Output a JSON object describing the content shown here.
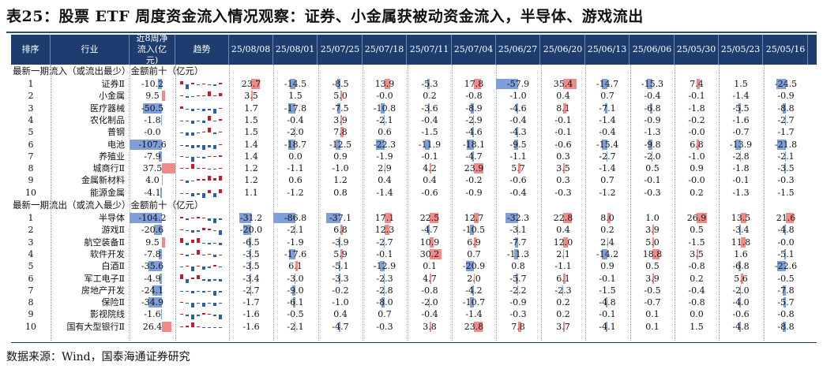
{
  "title": "表25：股票 ETF 周度资金流入情况观察：证券、小金属获被动资金流入，半导体、游戏流出",
  "headers": {
    "idx": "排序",
    "industry": "行业",
    "net8w": "近8周净流入(亿元)",
    "trend": "趋势",
    "weeks": [
      "25/08/08",
      "25/08/01",
      "25/07/25",
      "25/07/18",
      "25/07/11",
      "25/07/04",
      "25/06/27",
      "25/06/20",
      "25/06/13",
      "25/06/06",
      "25/05/30",
      "25/05/23",
      "25/05/16"
    ]
  },
  "section_inflow": "最新一期流入（或流出最少）金额前十（亿元）",
  "section_outflow": "最新一期流出（或流入最少）金额前十（亿元）",
  "colors": {
    "header_bg": "#1f3c6e",
    "neg_bar": "#7f9fd8",
    "pos_bar": "#f08b87",
    "spark_up": "#d0152a",
    "spark_down": "#2d5fa8"
  },
  "inflow_rows": [
    {
      "idx": "1",
      "industry": "证券Ⅱ",
      "net8w": "-10.2",
      "values": [
        "23.7",
        "-14.5",
        "-8.5",
        "13.9",
        "-5.3",
        "17.8",
        "-57.9",
        "35.4",
        "-14.7",
        "-15.3",
        "7.4",
        "1.5",
        "-24.5"
      ]
    },
    {
      "idx": "2",
      "industry": "小金属",
      "net8w": "9.5",
      "values": [
        "3.5",
        "1.5",
        "5.0",
        "-0.0",
        "0.2",
        "-0.8",
        "-1.0",
        "0.4",
        "0.7",
        "-0.4",
        "-0.1",
        "-1.4",
        "-0.9"
      ]
    },
    {
      "idx": "3",
      "industry": "医疗器械",
      "net8w": "-50.5",
      "values": [
        "1.7",
        "-17.8",
        "-7.5",
        "-10.8",
        "-3.6",
        "-8.9",
        "-4.6",
        "8.1",
        "-7.1",
        "-6.8",
        "-1.8",
        "-5.5",
        "-8.8"
      ]
    },
    {
      "idx": "4",
      "industry": "农化制品",
      "net8w": "-1.8",
      "values": [
        "1.5",
        "-0.4",
        "3.9",
        "-2.1",
        "-0.4",
        "-2.9",
        "-0.4",
        "-0.1",
        "-1.4",
        "-0.9",
        "-0.2",
        "-1.6",
        "-2.7"
      ]
    },
    {
      "idx": "5",
      "industry": "普钢",
      "net8w": "-0.0",
      "values": [
        "1.5",
        "-2.0",
        "7.8",
        "0.6",
        "-1.5",
        "-4.6",
        "-4.3",
        "-0.1",
        "-0.4",
        "-1.3",
        "-0.0",
        "-0.7",
        "-1.7"
      ]
    },
    {
      "idx": "6",
      "industry": "电池",
      "net8w": "-107.6",
      "values": [
        "1.4",
        "-18.7",
        "-12.5",
        "-22.3",
        "-11.9",
        "-18.1",
        "-9.5",
        "-0.6",
        "-15.4",
        "-9.8",
        "6.8",
        "-13.9",
        "-21.8"
      ]
    },
    {
      "idx": "7",
      "industry": "养殖业",
      "net8w": "-7.9",
      "values": [
        "1.4",
        "0.0",
        "0.9",
        "-1.9",
        "-0.1",
        "-4.7",
        "-1.1",
        "0.3",
        "-2.7",
        "-2.0",
        "-1.0",
        "-2.8",
        "-2.1"
      ]
    },
    {
      "idx": "8",
      "industry": "城商行Ⅱ",
      "net8w": "37.5",
      "values": [
        "1.2",
        "-1.1",
        "-1.0",
        "2.9",
        "4.2",
        "23.9",
        "5.7",
        "3.5",
        "-1.4",
        "0.5",
        "0.9",
        "-1.8",
        "-3.5"
      ]
    },
    {
      "idx": "9",
      "industry": "金属新材料",
      "net8w": "4.0",
      "values": [
        "1.2",
        "0.6",
        "1.2",
        "0.4",
        "0.4",
        "-0.2",
        "-0.6",
        "0.3",
        "0.7",
        "-0.1",
        "-0.0",
        "-0.1",
        "-0.3"
      ]
    },
    {
      "idx": "10",
      "industry": "能源金属",
      "net8w": "-4.1",
      "values": [
        "1.1",
        "-1.2",
        "0.8",
        "-1.4",
        "-0.6",
        "-0.9",
        "-0.4",
        "-0.3",
        "-1.2",
        "-0.3",
        "0.2",
        "-1.3",
        "-1.5"
      ]
    }
  ],
  "outflow_rows": [
    {
      "idx": "1",
      "industry": "半导体",
      "net8w": "-104.2",
      "values": [
        "-31.2",
        "-86.8",
        "-37.1",
        "17.1",
        "22.5",
        "12.7",
        "-32.3",
        "22.8",
        "8.0",
        "1.0",
        "26.9",
        "13.5",
        "21.6"
      ]
    },
    {
      "idx": "2",
      "industry": "游戏Ⅱ",
      "net8w": "-20.6",
      "values": [
        "-20.0",
        "-2.1",
        "6.8",
        "12.3",
        "-4.7",
        "-10.5",
        "-3.1",
        "0.4",
        "0.2",
        "3.9",
        "0.5",
        "-3.4",
        "-4.8"
      ]
    },
    {
      "idx": "3",
      "industry": "航空装备Ⅱ",
      "net8w": "9.5",
      "values": [
        "-6.5",
        "-1.9",
        "-3.9",
        "-2.7",
        "10.9",
        "6.9",
        "-7.7",
        "12.0",
        "2.4",
        "5.0",
        "-1.5",
        "11.8",
        "-0.0"
      ]
    },
    {
      "idx": "4",
      "industry": "软件开发",
      "net8w": "-7.8",
      "values": [
        "-3.5",
        "-17.6",
        "5.9",
        "-0.1",
        "30.2",
        "0.7",
        "-11.3",
        "2.1",
        "-14.2",
        "18.8",
        "3.5",
        "1.6",
        "-5.1"
      ]
    },
    {
      "idx": "5",
      "industry": "白酒Ⅱ",
      "net8w": "-35.6",
      "values": [
        "-3.5",
        "6.1",
        "-5.1",
        "-12.9",
        "0.1",
        "-20.9",
        "0.8",
        "-1.1",
        "0.9",
        "0.5",
        "-0.8",
        "-6.8",
        "-22.6"
      ]
    },
    {
      "idx": "6",
      "industry": "军工电子Ⅱ",
      "net8w": "-4.9",
      "values": [
        "-3.4",
        "-3.0",
        "-3.3",
        "-2.3",
        "4.7",
        "2.0",
        "-5.7",
        "6.1",
        "-0.1",
        "3.9",
        "0.2",
        "5.6",
        "-0.5"
      ]
    },
    {
      "idx": "7",
      "industry": "房地产开发",
      "net8w": "-24.1",
      "values": [
        "-2.7",
        "-9.0",
        "-0.2",
        "-2.8",
        "-0.8",
        "-4.2",
        "-2.2",
        "-2.3",
        "-1.5",
        "-0.5",
        "-0.4",
        "-2.0",
        "-7.8"
      ]
    },
    {
      "idx": "8",
      "industry": "保险Ⅱ",
      "net8w": "-34.9",
      "values": [
        "-1.7",
        "-6.1",
        "-1.0",
        "-8.0",
        "-2.0",
        "-10.7",
        "-0.9",
        "0.2",
        "-4.8",
        "-0.7",
        "-0.8",
        "-4.0",
        "-5.7"
      ]
    },
    {
      "idx": "9",
      "industry": "影视院线",
      "net8w": "-1.6",
      "values": [
        "-1.6",
        "-0.5",
        "0.4",
        "0.7",
        "-0.4",
        "-1.4",
        "-0.3",
        "0.2",
        "-0.1",
        "0.1",
        "0.0",
        "-0.6",
        "-0.8"
      ]
    },
    {
      "idx": "10",
      "industry": "国有大型银行Ⅱ",
      "net8w": "26.4",
      "values": [
        "-1.6",
        "-2.1",
        "-4.7",
        "-0.3",
        "3.8",
        "23.8",
        "7.8",
        "3.7",
        "-4.1",
        "0.1",
        "1.5",
        "-4.8",
        "-8.8"
      ]
    }
  ],
  "source": "数据来源：Wind，国泰海通证券研究"
}
